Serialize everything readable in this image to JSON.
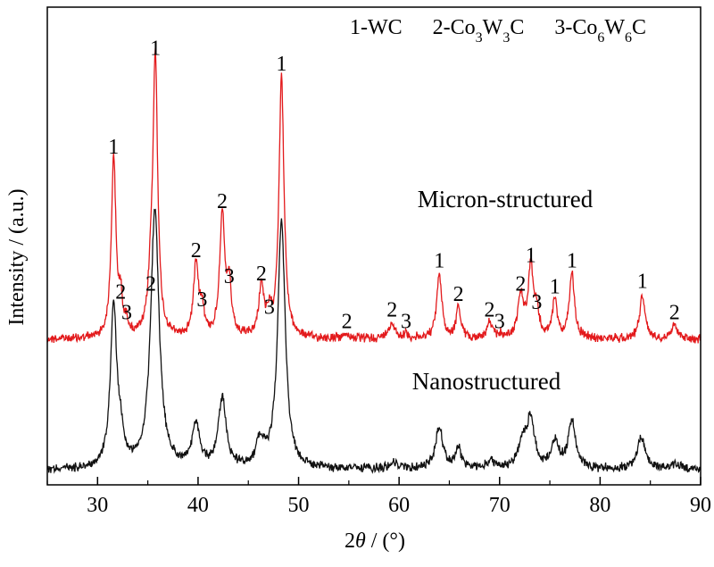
{
  "chart_data": {
    "type": "line",
    "xlabel": "2θ / (°)",
    "ylabel": "Intensity / (a.u.)",
    "xlim": [
      25,
      90
    ],
    "x_ticks": [
      30,
      40,
      50,
      60,
      70,
      80,
      90
    ],
    "y_ticks": [],
    "grid": false,
    "legend_items": [
      {
        "num": "1",
        "phase": "WC",
        "formula": [
          [
            "WC",
            false
          ]
        ]
      },
      {
        "num": "2",
        "phase": "Co3W3C",
        "formula": [
          [
            "Co",
            false
          ],
          [
            "3",
            true
          ],
          [
            "W",
            false
          ],
          [
            "3",
            true
          ],
          [
            "C",
            false
          ]
        ]
      },
      {
        "num": "3",
        "phase": "Co6W6C",
        "formula": [
          [
            "Co",
            false
          ],
          [
            "6",
            true
          ],
          [
            "W",
            false
          ],
          [
            "6",
            true
          ],
          [
            "C",
            false
          ]
        ]
      }
    ],
    "series": [
      {
        "name": "Micron-structured",
        "color": "#e31a1c",
        "baseline": 0.14,
        "peaks": [
          {
            "x": 31.6,
            "h": 0.69,
            "w": 0.28,
            "label": "1"
          },
          {
            "x": 32.3,
            "h": 0.13,
            "w": 0.2,
            "label": "2"
          },
          {
            "x": 32.9,
            "h": 0.05,
            "w": 0.2,
            "label": "3"
          },
          {
            "x": 35.3,
            "h": 0.16,
            "w": 0.3,
            "label": "2"
          },
          {
            "x": 35.75,
            "h": 1.07,
            "w": 0.28,
            "label": "1"
          },
          {
            "x": 39.8,
            "h": 0.29,
            "w": 0.3,
            "label": "2"
          },
          {
            "x": 40.4,
            "h": 0.1,
            "w": 0.25,
            "label": "3"
          },
          {
            "x": 42.4,
            "h": 0.48,
            "w": 0.3,
            "label": "2"
          },
          {
            "x": 43.1,
            "h": 0.19,
            "w": 0.25,
            "label": "3"
          },
          {
            "x": 46.3,
            "h": 0.2,
            "w": 0.3,
            "label": "2"
          },
          {
            "x": 47.1,
            "h": 0.07,
            "w": 0.25,
            "label": "3"
          },
          {
            "x": 48.3,
            "h": 1.01,
            "w": 0.3,
            "label": "1"
          },
          {
            "x": 54.8,
            "h": 0.015,
            "w": 0.4,
            "label": "2"
          },
          {
            "x": 59.3,
            "h": 0.06,
            "w": 0.4,
            "label": "2"
          },
          {
            "x": 60.7,
            "h": 0.015,
            "w": 0.3,
            "label": "3"
          },
          {
            "x": 64.0,
            "h": 0.25,
            "w": 0.3,
            "label": "1"
          },
          {
            "x": 65.9,
            "h": 0.12,
            "w": 0.28,
            "label": "2"
          },
          {
            "x": 69.0,
            "h": 0.06,
            "w": 0.3,
            "label": "2"
          },
          {
            "x": 70.0,
            "h": 0.015,
            "w": 0.3,
            "label": "3"
          },
          {
            "x": 72.1,
            "h": 0.16,
            "w": 0.35,
            "label": "2"
          },
          {
            "x": 73.1,
            "h": 0.27,
            "w": 0.3,
            "label": "1"
          },
          {
            "x": 73.7,
            "h": 0.09,
            "w": 0.28,
            "label": "3"
          },
          {
            "x": 75.5,
            "h": 0.15,
            "w": 0.28,
            "label": "1"
          },
          {
            "x": 77.2,
            "h": 0.25,
            "w": 0.3,
            "label": "1"
          },
          {
            "x": 84.2,
            "h": 0.17,
            "w": 0.32,
            "label": "1"
          },
          {
            "x": 87.4,
            "h": 0.05,
            "w": 0.45,
            "label": "2"
          }
        ]
      },
      {
        "name": "Nanostructured",
        "color": "#111111",
        "baseline": 0.0,
        "peaks": [
          {
            "x": 31.6,
            "h": 0.62,
            "w": 0.38
          },
          {
            "x": 32.3,
            "h": 0.1,
            "w": 0.3
          },
          {
            "x": 35.7,
            "h": 1.0,
            "w": 0.5
          },
          {
            "x": 39.8,
            "h": 0.16,
            "w": 0.45
          },
          {
            "x": 42.4,
            "h": 0.27,
            "w": 0.45
          },
          {
            "x": 46.2,
            "h": 0.1,
            "w": 0.45
          },
          {
            "x": 48.3,
            "h": 0.96,
            "w": 0.45
          },
          {
            "x": 59.5,
            "h": 0.025,
            "w": 0.5
          },
          {
            "x": 64.0,
            "h": 0.16,
            "w": 0.45
          },
          {
            "x": 65.9,
            "h": 0.08,
            "w": 0.35
          },
          {
            "x": 69.1,
            "h": 0.03,
            "w": 0.4
          },
          {
            "x": 72.3,
            "h": 0.1,
            "w": 0.5
          },
          {
            "x": 73.1,
            "h": 0.18,
            "w": 0.45
          },
          {
            "x": 75.5,
            "h": 0.1,
            "w": 0.45
          },
          {
            "x": 77.2,
            "h": 0.18,
            "w": 0.45
          },
          {
            "x": 84.1,
            "h": 0.12,
            "w": 0.5
          },
          {
            "x": 87.5,
            "h": 0.02,
            "w": 0.5
          }
        ]
      }
    ]
  }
}
